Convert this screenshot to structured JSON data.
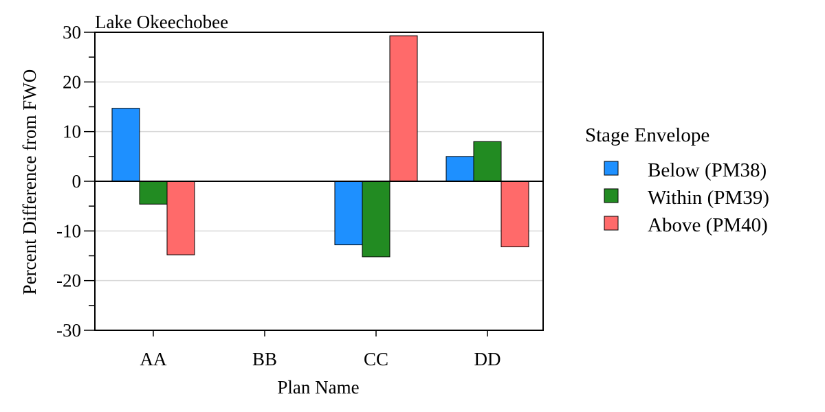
{
  "chart_data": {
    "type": "bar",
    "title": "Lake Okeechobee",
    "xlabel": "Plan Name",
    "ylabel": "Percent Difference from FWO",
    "categories": [
      "AA",
      "BB",
      "CC",
      "DD"
    ],
    "series": [
      {
        "name": "Below (PM38)",
        "color": "#1e90ff",
        "values": [
          14.7,
          null,
          -12.8,
          5.0
        ]
      },
      {
        "name": "Within (PM39)",
        "color": "#228b22",
        "values": [
          -4.6,
          null,
          -15.2,
          8.0
        ]
      },
      {
        "name": "Above (PM40)",
        "color": "#ff6a6a",
        "values": [
          -14.8,
          null,
          29.3,
          -13.2
        ]
      }
    ],
    "ylim": [
      -30,
      30
    ],
    "yticks": [
      -30,
      -20,
      -10,
      0,
      10,
      20,
      30
    ],
    "yminor_step": 5,
    "grid": true,
    "legend_title": "Stage Envelope",
    "legend_position": "right"
  }
}
